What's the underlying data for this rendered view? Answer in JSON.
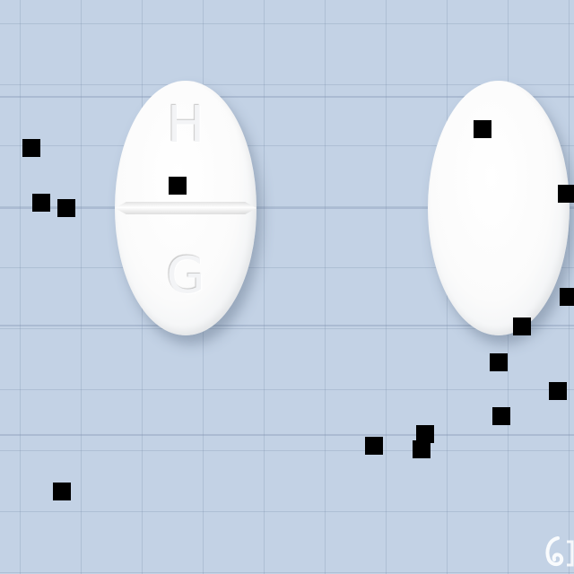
{
  "tablets": [
    {
      "imprint_top": "H",
      "imprint_bottom": "G",
      "scored": true
    },
    {
      "imprint_top": "",
      "imprint_bottom": "",
      "scored": false
    }
  ],
  "colors": {
    "background": "#c3d2e5",
    "tablet": "#ffffff",
    "marker": "#000000"
  }
}
